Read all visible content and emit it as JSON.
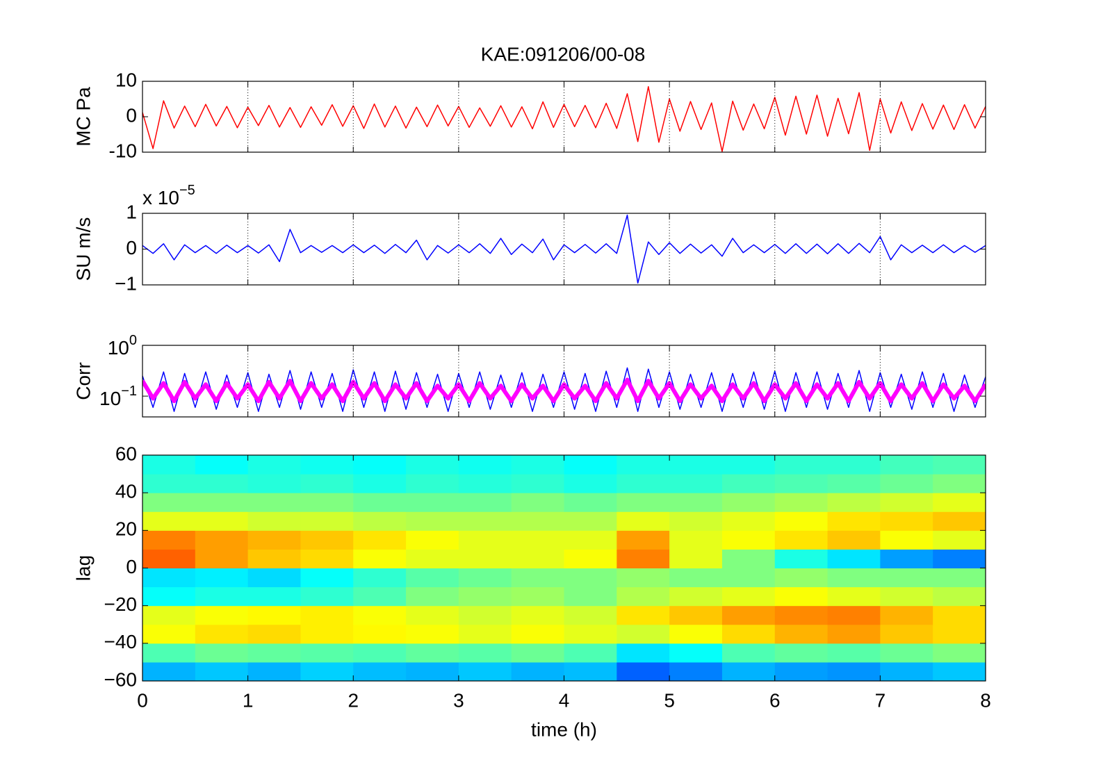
{
  "title": "KAE:091206/00-08",
  "chart_data": [
    {
      "type": "line",
      "ylabel": "MC Pa",
      "xlim": [
        0,
        8
      ],
      "xticks": [
        0,
        1,
        2,
        3,
        4,
        5,
        6,
        7,
        8
      ],
      "ylim": [
        -10,
        10
      ],
      "yticks": [
        -10,
        0,
        10
      ],
      "grid": true,
      "x": [
        0,
        0.1,
        0.2,
        0.3,
        0.4,
        0.5,
        0.6,
        0.7,
        0.8,
        0.9,
        1,
        1.1,
        1.2,
        1.3,
        1.4,
        1.5,
        1.6,
        1.7,
        1.8,
        1.9,
        2,
        2.1,
        2.2,
        2.3,
        2.4,
        2.5,
        2.6,
        2.7,
        2.8,
        2.9,
        3,
        3.1,
        3.2,
        3.3,
        3.4,
        3.5,
        3.6,
        3.7,
        3.8,
        3.9,
        4,
        4.1,
        4.2,
        4.3,
        4.4,
        4.5,
        4.6,
        4.7,
        4.8,
        4.9,
        5,
        5.1,
        5.2,
        5.3,
        5.4,
        5.5,
        5.6,
        5.7,
        5.8,
        5.9,
        6,
        6.1,
        6.2,
        6.3,
        6.4,
        6.5,
        6.6,
        6.7,
        6.8,
        6.9,
        7,
        7.1,
        7.2,
        7.3,
        7.4,
        7.5,
        7.6,
        7.7,
        7.8,
        7.9,
        8
      ],
      "series": [
        {
          "color": "#ff0000",
          "values": [
            1.2,
            -9.0,
            4.5,
            -3.2,
            3.0,
            -2.8,
            3.5,
            -2.6,
            2.9,
            -3.1,
            2.7,
            -2.5,
            3.2,
            -2.9,
            2.6,
            -3.0,
            2.8,
            -2.4,
            3.4,
            -2.7,
            3.1,
            -3.3,
            3.6,
            -2.9,
            3.0,
            -3.2,
            2.7,
            -2.8,
            3.3,
            -2.6,
            2.9,
            -3.0,
            2.5,
            -2.7,
            3.1,
            -2.9,
            2.8,
            -3.4,
            4.2,
            -3.0,
            3.5,
            -2.8,
            3.2,
            -3.1,
            3.8,
            -3.3,
            6.5,
            -7.0,
            8.5,
            -7.2,
            5.0,
            -4.1,
            4.3,
            -3.6,
            3.9,
            -9.8,
            4.4,
            -3.8,
            3.6,
            -3.4,
            5.5,
            -5.2,
            5.8,
            -4.9,
            6.1,
            -5.5,
            5.2,
            -4.8,
            6.8,
            -9.5,
            5.0,
            -4.6,
            4.2,
            -3.9,
            3.7,
            -3.5,
            3.3,
            -3.6,
            3.4,
            -3.2,
            2.9
          ]
        }
      ]
    },
    {
      "type": "line",
      "ylabel": "SU m/s",
      "scale_label": {
        "base": "x 10",
        "exponent": "−5"
      },
      "xlim": [
        0,
        8
      ],
      "xticks": [
        0,
        1,
        2,
        3,
        4,
        5,
        6,
        7,
        8
      ],
      "ylim": [
        -1,
        1
      ],
      "yticks": [
        {
          "value": -1,
          "label": "−1"
        },
        0,
        1
      ],
      "grid": true,
      "x": [
        0,
        0.1,
        0.2,
        0.3,
        0.4,
        0.5,
        0.6,
        0.7,
        0.8,
        0.9,
        1,
        1.1,
        1.2,
        1.3,
        1.4,
        1.5,
        1.6,
        1.7,
        1.8,
        1.9,
        2,
        2.1,
        2.2,
        2.3,
        2.4,
        2.5,
        2.6,
        2.7,
        2.8,
        2.9,
        3,
        3.1,
        3.2,
        3.3,
        3.4,
        3.5,
        3.6,
        3.7,
        3.8,
        3.9,
        4,
        4.1,
        4.2,
        4.3,
        4.4,
        4.5,
        4.6,
        4.7,
        4.8,
        4.9,
        5,
        5.1,
        5.2,
        5.3,
        5.4,
        5.5,
        5.6,
        5.7,
        5.8,
        5.9,
        6,
        6.1,
        6.2,
        6.3,
        6.4,
        6.5,
        6.6,
        6.7,
        6.8,
        6.9,
        7,
        7.1,
        7.2,
        7.3,
        7.4,
        7.5,
        7.6,
        7.7,
        7.8,
        7.9,
        8
      ],
      "series": [
        {
          "color": "#0000ff",
          "values": [
            0.1,
            -0.12,
            0.15,
            -0.3,
            0.12,
            -0.1,
            0.1,
            -0.12,
            0.11,
            -0.1,
            0.1,
            -0.11,
            0.12,
            -0.35,
            0.55,
            -0.1,
            0.1,
            -0.09,
            0.1,
            -0.1,
            0.12,
            -0.1,
            0.11,
            -0.12,
            0.13,
            -0.1,
            0.25,
            -0.3,
            0.1,
            -0.11,
            0.12,
            -0.1,
            0.15,
            -0.12,
            0.3,
            -0.15,
            0.14,
            -0.1,
            0.28,
            -0.3,
            0.12,
            -0.1,
            0.13,
            -0.11,
            0.15,
            -0.12,
            0.95,
            -0.95,
            0.2,
            -0.15,
            0.18,
            -0.12,
            0.14,
            -0.11,
            0.12,
            -0.2,
            0.3,
            -0.1,
            0.12,
            -0.1,
            0.13,
            -0.12,
            0.15,
            -0.12,
            0.14,
            -0.13,
            0.15,
            -0.12,
            0.16,
            -0.1,
            0.35,
            -0.3,
            0.12,
            -0.1,
            0.11,
            -0.1,
            0.12,
            -0.1,
            0.1,
            -0.09,
            0.1
          ]
        }
      ]
    },
    {
      "type": "line",
      "ylabel": "Corr",
      "log_y": true,
      "xlim": [
        0,
        8
      ],
      "xticks": [
        0,
        1,
        2,
        3,
        4,
        5,
        6,
        7,
        8
      ],
      "ylim": [
        0.039,
        1
      ],
      "yticks": [
        {
          "value": 0.1,
          "label": "10",
          "exponent": "−1"
        },
        {
          "value": 1,
          "label": "10",
          "exponent": "0"
        }
      ],
      "grid": true,
      "x": [
        0,
        0.1,
        0.2,
        0.3,
        0.4,
        0.5,
        0.6,
        0.7,
        0.8,
        0.9,
        1,
        1.1,
        1.2,
        1.3,
        1.4,
        1.5,
        1.6,
        1.7,
        1.8,
        1.9,
        2,
        2.1,
        2.2,
        2.3,
        2.4,
        2.5,
        2.6,
        2.7,
        2.8,
        2.9,
        3,
        3.1,
        3.2,
        3.3,
        3.4,
        3.5,
        3.6,
        3.7,
        3.8,
        3.9,
        4,
        4.1,
        4.2,
        4.3,
        4.4,
        4.5,
        4.6,
        4.7,
        4.8,
        4.9,
        5,
        5.1,
        5.2,
        5.3,
        5.4,
        5.5,
        5.6,
        5.7,
        5.8,
        5.9,
        6,
        6.1,
        6.2,
        6.3,
        6.4,
        6.5,
        6.6,
        6.7,
        6.8,
        6.9,
        7,
        7.1,
        7.2,
        7.3,
        7.4,
        7.5,
        7.6,
        7.7,
        7.8,
        7.9,
        8
      ],
      "series": [
        {
          "color": "#0000ff",
          "values": [
            0.25,
            0.06,
            0.3,
            0.05,
            0.28,
            0.06,
            0.3,
            0.055,
            0.26,
            0.06,
            0.29,
            0.05,
            0.27,
            0.06,
            0.32,
            0.055,
            0.3,
            0.06,
            0.28,
            0.05,
            0.33,
            0.06,
            0.3,
            0.05,
            0.31,
            0.055,
            0.29,
            0.06,
            0.27,
            0.05,
            0.28,
            0.06,
            0.3,
            0.055,
            0.26,
            0.06,
            0.29,
            0.05,
            0.27,
            0.06,
            0.3,
            0.055,
            0.28,
            0.05,
            0.31,
            0.06,
            0.36,
            0.05,
            0.34,
            0.06,
            0.3,
            0.055,
            0.27,
            0.06,
            0.29,
            0.05,
            0.28,
            0.06,
            0.3,
            0.055,
            0.31,
            0.05,
            0.29,
            0.06,
            0.3,
            0.055,
            0.28,
            0.06,
            0.32,
            0.05,
            0.29,
            0.06,
            0.27,
            0.055,
            0.3,
            0.06,
            0.28,
            0.05,
            0.26,
            0.06,
            0.24
          ]
        },
        {
          "color": "#ff00ff",
          "values": [
            0.2,
            0.09,
            0.18,
            0.08,
            0.19,
            0.09,
            0.17,
            0.08,
            0.18,
            0.09,
            0.17,
            0.08,
            0.19,
            0.09,
            0.2,
            0.08,
            0.18,
            0.09,
            0.17,
            0.08,
            0.19,
            0.09,
            0.18,
            0.08,
            0.17,
            0.09,
            0.18,
            0.08,
            0.16,
            0.09,
            0.17,
            0.08,
            0.18,
            0.09,
            0.16,
            0.08,
            0.17,
            0.09,
            0.16,
            0.08,
            0.17,
            0.09,
            0.16,
            0.08,
            0.18,
            0.09,
            0.21,
            0.08,
            0.2,
            0.09,
            0.18,
            0.08,
            0.17,
            0.09,
            0.16,
            0.08,
            0.17,
            0.09,
            0.18,
            0.08,
            0.17,
            0.09,
            0.18,
            0.08,
            0.17,
            0.09,
            0.18,
            0.08,
            0.19,
            0.09,
            0.18,
            0.08,
            0.17,
            0.09,
            0.18,
            0.08,
            0.17,
            0.09,
            0.16,
            0.08,
            0.17
          ]
        }
      ]
    },
    {
      "type": "heatmap",
      "ylabel": "lag",
      "xlabel": "time (h)",
      "xlim": [
        0,
        8
      ],
      "xticks": [
        0,
        1,
        2,
        3,
        4,
        5,
        6,
        7,
        8
      ],
      "ylim": [
        -60,
        60
      ],
      "yticks": [
        {
          "value": -60,
          "label": "−60"
        },
        {
          "value": -40,
          "label": "−40"
        },
        {
          "value": -20,
          "label": "−20"
        },
        0,
        20,
        40,
        60
      ],
      "grid": false,
      "x_bins": [
        0,
        0.5,
        1,
        1.5,
        2,
        2.5,
        3,
        3.5,
        4,
        4.5,
        5,
        5.5,
        6,
        6.5,
        7,
        7.5,
        8
      ],
      "y_bins": [
        -60,
        -50,
        -40,
        -30,
        -20,
        -10,
        0,
        10,
        20,
        30,
        40,
        50,
        60
      ],
      "z": [
        [
          0.3,
          0.32,
          0.3,
          0.33,
          0.31,
          0.3,
          0.32,
          0.3,
          0.31,
          0.22,
          0.25,
          0.3,
          0.28,
          0.27,
          0.3,
          0.32
        ],
        [
          0.45,
          0.48,
          0.47,
          0.46,
          0.45,
          0.47,
          0.46,
          0.48,
          0.45,
          0.35,
          0.38,
          0.45,
          0.47,
          0.46,
          0.48,
          0.5
        ],
        [
          0.62,
          0.65,
          0.66,
          0.64,
          0.63,
          0.62,
          0.6,
          0.62,
          0.6,
          0.58,
          0.62,
          0.66,
          0.7,
          0.72,
          0.68,
          0.66
        ],
        [
          0.6,
          0.62,
          0.63,
          0.64,
          0.62,
          0.6,
          0.58,
          0.6,
          0.58,
          0.65,
          0.68,
          0.72,
          0.74,
          0.75,
          0.7,
          0.66
        ],
        [
          0.38,
          0.4,
          0.4,
          0.42,
          0.45,
          0.5,
          0.52,
          0.53,
          0.5,
          0.55,
          0.58,
          0.6,
          0.62,
          0.6,
          0.58,
          0.56
        ],
        [
          0.35,
          0.36,
          0.34,
          0.38,
          0.42,
          0.46,
          0.48,
          0.5,
          0.5,
          0.52,
          0.5,
          0.5,
          0.52,
          0.5,
          0.5,
          0.5
        ],
        [
          0.78,
          0.72,
          0.68,
          0.66,
          0.62,
          0.6,
          0.6,
          0.6,
          0.62,
          0.75,
          0.6,
          0.5,
          0.4,
          0.35,
          0.28,
          0.25
        ],
        [
          0.75,
          0.72,
          0.7,
          0.68,
          0.65,
          0.62,
          0.6,
          0.6,
          0.6,
          0.72,
          0.6,
          0.62,
          0.65,
          0.68,
          0.62,
          0.6
        ],
        [
          0.6,
          0.6,
          0.58,
          0.58,
          0.56,
          0.55,
          0.55,
          0.55,
          0.55,
          0.6,
          0.58,
          0.6,
          0.62,
          0.65,
          0.66,
          0.68
        ],
        [
          0.5,
          0.5,
          0.5,
          0.5,
          0.48,
          0.48,
          0.48,
          0.5,
          0.48,
          0.5,
          0.5,
          0.52,
          0.54,
          0.56,
          0.58,
          0.6
        ],
        [
          0.42,
          0.42,
          0.41,
          0.42,
          0.4,
          0.42,
          0.41,
          0.42,
          0.4,
          0.42,
          0.42,
          0.44,
          0.45,
          0.46,
          0.48,
          0.5
        ],
        [
          0.4,
          0.38,
          0.4,
          0.39,
          0.38,
          0.4,
          0.39,
          0.4,
          0.38,
          0.4,
          0.4,
          0.4,
          0.42,
          0.42,
          0.44,
          0.45
        ]
      ]
    }
  ]
}
